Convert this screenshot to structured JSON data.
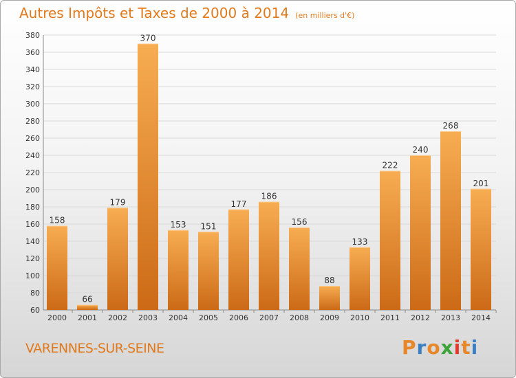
{
  "title": "Autres Impôts et Taxes de 2000 à 2014",
  "unit": "(en milliers d'€)",
  "commune": "VARENNES-SUR-SEINE",
  "logo": "Proxiti",
  "colors": {
    "accent": "#e07a1c",
    "bar_light": "#f6a94d",
    "bar_dark": "#cf6d17"
  },
  "chart_data": {
    "type": "bar",
    "title": "Autres Impôts et Taxes de 2000 à 2014",
    "subtitle": "(en milliers d'€)",
    "categories": [
      "2000",
      "2001",
      "2002",
      "2003",
      "2004",
      "2005",
      "2006",
      "2007",
      "2008",
      "2009",
      "2010",
      "2011",
      "2012",
      "2013",
      "2014"
    ],
    "values": [
      158,
      66,
      179,
      370,
      153,
      151,
      177,
      186,
      156,
      88,
      133,
      222,
      240,
      268,
      201
    ],
    "ylim": [
      60,
      380
    ],
    "yticks": [
      60,
      80,
      100,
      120,
      140,
      160,
      180,
      200,
      220,
      240,
      260,
      280,
      300,
      320,
      340,
      360,
      380
    ],
    "grid": true,
    "data_labels": true
  }
}
